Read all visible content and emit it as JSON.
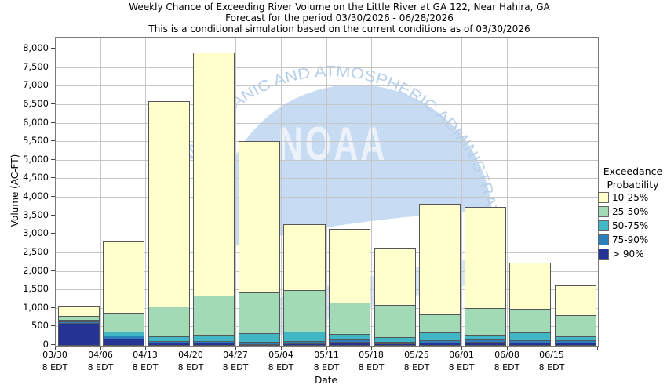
{
  "title": {
    "line1": "Weekly Chance of Exceeding River Volume on the Little River at GA 122, Near Hahira, GA",
    "line2": "Forecast for the period 03/30/2026 - 06/28/2026",
    "line3": "This is a conditional simulation based on the current conditions as of 03/30/2026"
  },
  "chart_data": {
    "type": "bar",
    "stacked": true,
    "title_lines": [
      "Weekly Chance of Exceeding River Volume on the Little River at GA 122, Near Hahira, GA",
      "Forecast for the period 03/30/2026 - 06/28/2026",
      "This is a conditional simulation based on the current conditions as of 03/30/2026"
    ],
    "xlabel": "Date",
    "ylabel": "Volume (AC-FT)",
    "ylim": [
      0,
      8320
    ],
    "ytick_step": 500,
    "ytick_labels": [
      "0",
      "500",
      "1,000",
      "1,500",
      "2,000",
      "2,500",
      "3,000",
      "3,500",
      "4,000",
      "4,500",
      "5,000",
      "5,500",
      "6,000",
      "6,500",
      "7,000",
      "7,500",
      "8,000"
    ],
    "categories": [
      "03/30",
      "04/06",
      "04/13",
      "04/20",
      "04/27",
      "05/04",
      "05/11",
      "05/18",
      "05/25",
      "06/01",
      "06/08",
      "06/15"
    ],
    "category_sublabel": "8 EDT",
    "grid": true,
    "legend_position": "right",
    "legend_title_line1": "Exceedance",
    "legend_title_line2": "Probability",
    "series": [
      {
        "name": "10-25%",
        "color": "#FFFFCC",
        "values": [
          305,
          1950,
          5570,
          6590,
          4095,
          1810,
          2025,
          1565,
          3015,
          2755,
          1280,
          830
        ]
      },
      {
        "name": "25-50%",
        "color": "#A1DAB4",
        "values": [
          100,
          500,
          795,
          1050,
          1110,
          1120,
          845,
          860,
          480,
          720,
          630,
          565
        ]
      },
      {
        "name": "50-75%",
        "color": "#41B6C4",
        "values": [
          55,
          110,
          120,
          170,
          225,
          250,
          135,
          140,
          210,
          125,
          215,
          115
        ]
      },
      {
        "name": "75-90%",
        "color": "#2C7FB8",
        "values": [
          35,
          75,
          50,
          50,
          55,
          60,
          75,
          45,
          65,
          65,
          60,
          65
        ]
      },
      {
        "name": "> 90%",
        "color": "#253494",
        "values": [
          590,
          175,
          65,
          55,
          30,
          50,
          80,
          35,
          65,
          85,
          65,
          55
        ]
      }
    ],
    "totals": [
      1085,
      2810,
      6600,
      7915,
      5515,
      3290,
      3160,
      2645,
      3835,
      3750,
      2250,
      1630
    ],
    "watermark": {
      "arc_text": "NATIONAL OCEANIC AND ATMOSPHERIC ADMINISTRATION",
      "main_text": "NOAA",
      "circle_color": "#c7dbf2",
      "arc_text_color": "#b6cfeb"
    }
  }
}
